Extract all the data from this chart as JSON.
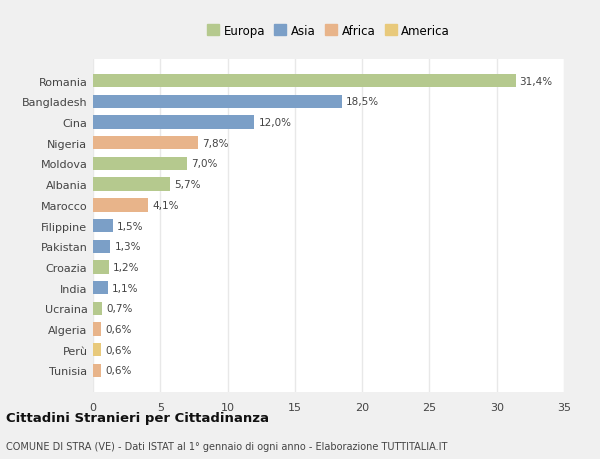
{
  "categories": [
    "Romania",
    "Bangladesh",
    "Cina",
    "Nigeria",
    "Moldova",
    "Albania",
    "Marocco",
    "Filippine",
    "Pakistan",
    "Croazia",
    "India",
    "Ucraina",
    "Algeria",
    "Perù",
    "Tunisia"
  ],
  "values": [
    31.4,
    18.5,
    12.0,
    7.8,
    7.0,
    5.7,
    4.1,
    1.5,
    1.3,
    1.2,
    1.1,
    0.7,
    0.6,
    0.6,
    0.6
  ],
  "labels": [
    "31,4%",
    "18,5%",
    "12,0%",
    "7,8%",
    "7,0%",
    "5,7%",
    "4,1%",
    "1,5%",
    "1,3%",
    "1,2%",
    "1,1%",
    "0,7%",
    "0,6%",
    "0,6%",
    "0,6%"
  ],
  "colors": [
    "#b5c98e",
    "#7b9fc7",
    "#7b9fc7",
    "#e8b48a",
    "#b5c98e",
    "#b5c98e",
    "#e8b48a",
    "#7b9fc7",
    "#7b9fc7",
    "#b5c98e",
    "#7b9fc7",
    "#b5c98e",
    "#e8b48a",
    "#e8c97b",
    "#e8b48a"
  ],
  "legend_labels": [
    "Europa",
    "Asia",
    "Africa",
    "America"
  ],
  "legend_colors": [
    "#b5c98e",
    "#7b9fc7",
    "#e8b48a",
    "#e8c97b"
  ],
  "xlim": [
    0,
    35
  ],
  "xticks": [
    0,
    5,
    10,
    15,
    20,
    25,
    30,
    35
  ],
  "title": "Cittadini Stranieri per Cittadinanza",
  "subtitle": "COMUNE DI STRA (VE) - Dati ISTAT al 1° gennaio di ogni anno - Elaborazione TUTTITALIA.IT",
  "background_color": "#f0f0f0",
  "plot_background": "#ffffff",
  "grid_color": "#e8e8e8",
  "bar_height": 0.65
}
